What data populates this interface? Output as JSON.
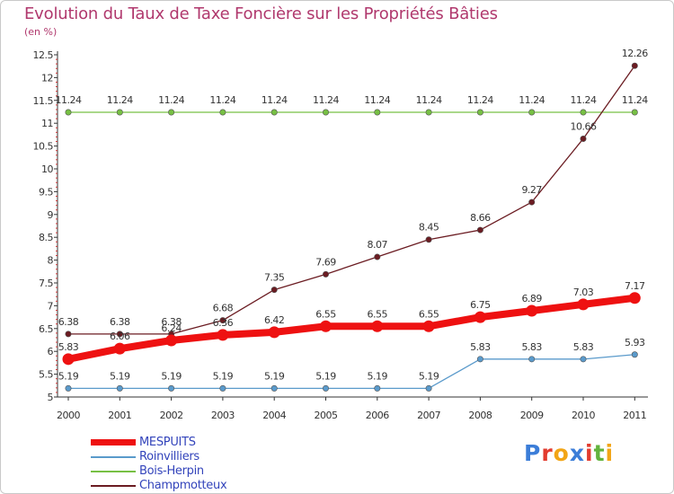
{
  "header": {
    "title": "Evolution du Taux de Taxe Foncière sur les Propriétés Bâties",
    "unit": "(en %)"
  },
  "chart_data": {
    "type": "line",
    "title": "Evolution du Taux de Taxe Foncière sur les Propriétés Bâties",
    "ylabel": "(en %)",
    "xlabel": "",
    "ylim": [
      5,
      12.5
    ],
    "y_ticks": [
      "5",
      "5.5",
      "6",
      "6.5",
      "7",
      "7.5",
      "8",
      "8.5",
      "9",
      "9.5",
      "10",
      "10.5",
      "11",
      "11.5",
      "12",
      "12.5"
    ],
    "categories": [
      "2000",
      "2001",
      "2002",
      "2003",
      "2004",
      "2005",
      "2006",
      "2007",
      "2008",
      "2009",
      "2010",
      "2011"
    ],
    "series": [
      {
        "name": "Roinvilliers",
        "color": "#5a9acb",
        "values": [
          5.19,
          5.19,
          5.19,
          5.19,
          5.19,
          5.19,
          5.19,
          5.19,
          5.83,
          5.83,
          5.83,
          5.93
        ],
        "labels": [
          "5.19",
          "5.19",
          "5.19",
          "5.19",
          "5.19",
          "5.19",
          "5.19",
          "5.19",
          "5.83",
          "5.83",
          "5.83",
          "5.93"
        ]
      },
      {
        "name": "Bois-Herpin",
        "color": "#77c044",
        "values": [
          11.24,
          11.24,
          11.24,
          11.24,
          11.24,
          11.24,
          11.24,
          11.24,
          11.24,
          11.24,
          11.24,
          11.24
        ],
        "labels": [
          "11.24",
          "11.24",
          "11.24",
          "11.24",
          "11.24",
          "11.24",
          "11.24",
          "11.24",
          "11.24",
          "11.24",
          "11.24",
          "11.24"
        ]
      },
      {
        "name": "Champmotteux",
        "color": "#6b1c22",
        "values": [
          6.38,
          6.38,
          6.38,
          6.68,
          7.35,
          7.69,
          8.07,
          8.45,
          8.66,
          9.27,
          10.66,
          12.26
        ],
        "labels": [
          "6.38",
          "6.38",
          "6.38",
          "6.68",
          "7.35",
          "7.69",
          "8.07",
          "8.45",
          "8.66",
          "9.27",
          "10.66",
          "12.26"
        ]
      },
      {
        "name": "MESPUITS",
        "color": "#ee1111",
        "values": [
          5.83,
          6.06,
          6.24,
          6.36,
          6.42,
          6.55,
          6.55,
          6.55,
          6.75,
          6.89,
          7.03,
          7.17
        ],
        "labels": [
          "5.83",
          "6.06",
          "6.24",
          "6.36",
          "6.42",
          "6.55",
          "6.55",
          "6.55",
          "6.75",
          "6.89",
          "7.03",
          "7.17"
        ]
      }
    ],
    "legend_order": [
      "MESPUITS",
      "Roinvilliers",
      "Bois-Herpin",
      "Champmotteux"
    ],
    "legend_position": "bottom-left",
    "grid": false
  },
  "logo": {
    "letters": [
      "P",
      "r",
      "o",
      "x",
      "i",
      "t",
      "i"
    ],
    "colors": [
      "#3b7dd8",
      "#e23b2e",
      "#f2a516",
      "#3b7dd8",
      "#e23b2e",
      "#62b33d",
      "#f2a516"
    ]
  }
}
